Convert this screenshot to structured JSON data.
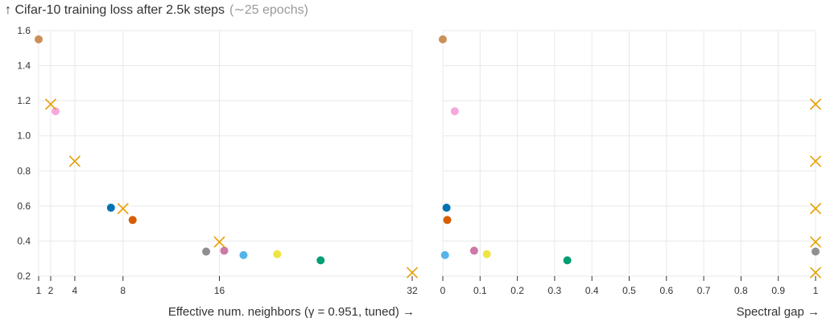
{
  "title": "↑ Cifar-10 training loss after 2.5k steps",
  "subtitle": "(∼25 epochs)",
  "colors": {
    "cross": "#E69F00",
    "grid": "#e8e8e8"
  },
  "chart_data": [
    {
      "type": "scatter",
      "xlabel": "Effective num. neighbors (γ = 0.951, tuned) →",
      "ylabel": "",
      "xlim": [
        1,
        32
      ],
      "ylim": [
        0.2,
        1.6
      ],
      "x_ticks": [
        1,
        2,
        4,
        8,
        16,
        32
      ],
      "y_ticks": [
        0.2,
        0.4,
        0.6,
        0.8,
        1.0,
        1.2,
        1.4,
        1.6
      ],
      "y_tick_labels": [
        "0.2",
        "0.4",
        "0.6",
        "0.8",
        "1.0",
        "1.2",
        "1.4",
        "1.6"
      ],
      "grid": true,
      "series": [
        {
          "marker": "circle",
          "color": "#CC8F5A",
          "points": [
            [
              1.0,
              1.55
            ]
          ]
        },
        {
          "marker": "circle",
          "color": "#F6A8DE",
          "points": [
            [
              2.4,
              1.14
            ]
          ]
        },
        {
          "marker": "circle",
          "color": "#0072B2",
          "points": [
            [
              7.0,
              0.59
            ]
          ]
        },
        {
          "marker": "circle",
          "color": "#D55E00",
          "points": [
            [
              8.8,
              0.52
            ]
          ]
        },
        {
          "marker": "circle",
          "color": "#8F8F8F",
          "points": [
            [
              14.9,
              0.34
            ]
          ]
        },
        {
          "marker": "circle",
          "color": "#CC79A7",
          "points": [
            [
              16.4,
              0.345
            ]
          ]
        },
        {
          "marker": "circle",
          "color": "#56B4E9",
          "points": [
            [
              18.0,
              0.32
            ]
          ]
        },
        {
          "marker": "circle",
          "color": "#F0E442",
          "points": [
            [
              20.8,
              0.325
            ]
          ]
        },
        {
          "marker": "circle",
          "color": "#009E73",
          "points": [
            [
              24.4,
              0.29
            ]
          ]
        },
        {
          "marker": "cross",
          "color": "#E69F00",
          "points": [
            [
              2.0,
              1.18
            ],
            [
              4.0,
              0.855
            ],
            [
              8.0,
              0.585
            ],
            [
              16.0,
              0.395
            ],
            [
              32.0,
              0.22
            ]
          ]
        }
      ]
    },
    {
      "type": "scatter",
      "xlabel": "Spectral gap →",
      "ylabel": "",
      "xlim": [
        0,
        1
      ],
      "ylim": [
        0.2,
        1.6
      ],
      "x_ticks": [
        0,
        0.1,
        0.2,
        0.3,
        0.4,
        0.5,
        0.6,
        0.7,
        0.8,
        0.9,
        1
      ],
      "x_tick_labels": [
        "0",
        "0.1",
        "0.2",
        "0.3",
        "0.4",
        "0.5",
        "0.6",
        "0.7",
        "0.8",
        "0.9",
        "1"
      ],
      "y_ticks": [
        0.2,
        0.4,
        0.6,
        0.8,
        1.0,
        1.2,
        1.4,
        1.6
      ],
      "grid": true,
      "series": [
        {
          "marker": "circle",
          "color": "#CC8F5A",
          "points": [
            [
              0.0,
              1.55
            ]
          ]
        },
        {
          "marker": "circle",
          "color": "#F6A8DE",
          "points": [
            [
              0.032,
              1.14
            ]
          ]
        },
        {
          "marker": "circle",
          "color": "#0072B2",
          "points": [
            [
              0.01,
              0.59
            ]
          ]
        },
        {
          "marker": "circle",
          "color": "#D55E00",
          "points": [
            [
              0.012,
              0.52
            ]
          ]
        },
        {
          "marker": "circle",
          "color": "#56B4E9",
          "points": [
            [
              0.006,
              0.32
            ]
          ]
        },
        {
          "marker": "circle",
          "color": "#CC79A7",
          "points": [
            [
              0.084,
              0.345
            ]
          ]
        },
        {
          "marker": "circle",
          "color": "#F0E442",
          "points": [
            [
              0.118,
              0.325
            ]
          ]
        },
        {
          "marker": "circle",
          "color": "#009E73",
          "points": [
            [
              0.334,
              0.29
            ]
          ]
        },
        {
          "marker": "circle",
          "color": "#8F8F8F",
          "points": [
            [
              1.0,
              0.34
            ]
          ]
        },
        {
          "marker": "cross",
          "color": "#E69F00",
          "points": [
            [
              1.0,
              1.18
            ],
            [
              1.0,
              0.855
            ],
            [
              1.0,
              0.585
            ],
            [
              1.0,
              0.395
            ],
            [
              1.0,
              0.22
            ]
          ]
        }
      ]
    }
  ]
}
